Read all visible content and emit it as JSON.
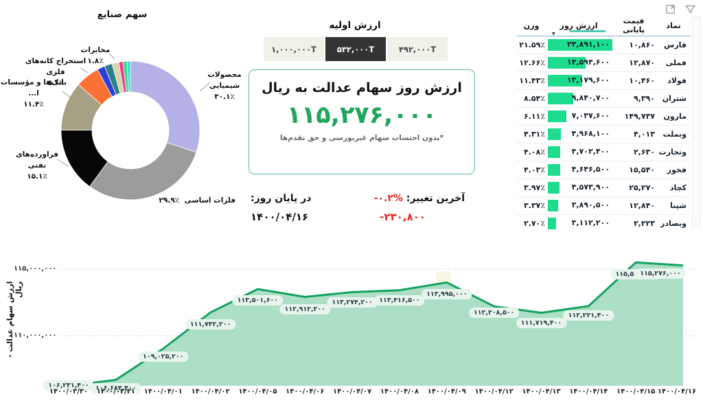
{
  "topbar": {
    "icons": [
      {
        "name": "filter-funnel"
      },
      {
        "name": "expand-fullscreen"
      }
    ]
  },
  "industry_chart": {
    "title": "سهم صنایع",
    "segments": [
      {
        "label": "محصولات شیمیایی",
        "pct_label": "۳۰.۱٪",
        "pct": 30.1,
        "color": "#b3b1e5"
      },
      {
        "label": "فلزات اساسی",
        "pct_label": "۲۹.۹٪",
        "pct": 29.9,
        "color": "#9c9c9c"
      },
      {
        "label": "فراورده‌های نفتی",
        "pct_label": "۱۵.۱٪",
        "pct": 15.1,
        "color": "#060606"
      },
      {
        "label": "بانک‌ها و مؤسسات ا...",
        "pct_label": "۱۱.۴٪",
        "pct": 11.4,
        "color": "#a6a184"
      },
      {
        "label": "استخراج کانه‌های فلزی",
        "pct_label": "۵.۶٪",
        "pct": 5.6,
        "color": "#fb7134"
      },
      {
        "label": "مخابرات",
        "pct_label": "۱.۸٪",
        "pct": 1.8,
        "color": "#2c3fd4"
      },
      {
        "label": "",
        "pct_label": "",
        "pct": 1.8,
        "color": "#2e7f8d"
      },
      {
        "label": "",
        "pct_label": "",
        "pct": 1.6,
        "color": "#d9d4a9"
      },
      {
        "label": "",
        "pct_label": "",
        "pct": 1.0,
        "color": "#f23a93"
      },
      {
        "label": "",
        "pct_label": "",
        "pct": 0.9,
        "color": "#35d98b"
      },
      {
        "label": "",
        "pct_label": "",
        "pct": 0.8,
        "color": "#3fdcd0"
      }
    ]
  },
  "initial_value": {
    "title": "ارزش اولیه",
    "options": [
      {
        "label": "۱,۰۰۰,۰۰۰T",
        "selected": false
      },
      {
        "label": "۵۳۲,۰۰۰T",
        "selected": true
      },
      {
        "label": "۴۹۲,۰۰۰T",
        "selected": false
      }
    ]
  },
  "value_box": {
    "title": "ارزش روز سهام عدالت به ریال",
    "value": "۱۱۵,۲۷۶,۰۰۰",
    "note": "*بدون احتساب سهام غیربورسی و حق تقدم‌ها"
  },
  "change": {
    "label": "آخرین تغییر:",
    "pct": "-۰.۲%",
    "end_label": "در پایان روز:",
    "amount": "-۲۳۰,۸۰۰",
    "date": "۱۴۰۰/۰۴/۱۶"
  },
  "table": {
    "columns": [
      "نماد",
      "قیمت پایانی",
      "ارزش روز",
      "وزن"
    ],
    "sort_icon": "▼",
    "scrollbar": {
      "up": "˄",
      "down": "˅"
    },
    "rows": [
      {
        "symbol": "فارس",
        "close": "۱۰,۸۶۰",
        "value": "۲۴,۸۹۱,۱۰۰",
        "weight": "۲۱.۵۹٪"
      },
      {
        "symbol": "فملی",
        "close": "۱۲,۸۷۰",
        "value": "۱۴,۵۹۴,۶۰۰",
        "weight": "۱۲.۶۶٪"
      },
      {
        "symbol": "فولاد",
        "close": "۱۰,۴۶۰",
        "value": "۱۳,۱۷۹,۶۰۰",
        "weight": "۱۱.۴۳٪"
      },
      {
        "symbol": "شتران",
        "close": "۹,۳۹۰",
        "value": "۹,۸۴۰,۷۰۰",
        "weight": "۸.۵۴٪"
      },
      {
        "symbol": "مارون",
        "close": "۱۴۹,۷۳۷",
        "value": "۷,۰۳۷,۶۰۰",
        "weight": "۶.۱۱٪"
      },
      {
        "symbol": "وبملت",
        "close": "۴,۰۱۳",
        "value": "۴,۹۶۸,۱۰۰",
        "weight": "۴.۳۱٪"
      },
      {
        "symbol": "وتجارت",
        "close": "۲,۶۳۰",
        "value": "۴,۷۰۲,۴۰۰",
        "weight": "۴.۰۸٪"
      },
      {
        "symbol": "فخوز",
        "close": "۱۵,۵۴۰",
        "value": "۴,۶۴۶,۵۰۰",
        "weight": "۴.۰۳٪"
      },
      {
        "symbol": "کچاد",
        "close": "۲۵,۲۷۰",
        "value": "۴,۵۷۳,۹۰۰",
        "weight": "۳.۹۷٪"
      },
      {
        "symbol": "شپنا",
        "close": "۱۲,۸۴۰",
        "value": "۳,۸۹۰,۵۰۰",
        "weight": "۳.۳۷٪"
      },
      {
        "symbol": "وبصادر",
        "close": "۲,۲۲۳",
        "value": "۳,۱۱۲,۲۰۰",
        "weight": "۲.۷۰٪"
      },
      {
        "symbol": "",
        "close": "",
        "value": "",
        "weight": "",
        "partial": true
      }
    ]
  },
  "chart_data": {
    "type": "area",
    "title": "",
    "xlabel": "",
    "ylabel": "ارزش سهام عدالت - ریال",
    "x": [
      "۱۴۰۰/۰۳/۳۰",
      "۱۴۰۰/۰۳/۳۱",
      "۱۴۰۰/۰۴/۰۱",
      "۱۴۰۰/۰۴/۰۲",
      "۱۴۰۰/۰۴/۰۵",
      "۱۴۰۰/۰۴/۰۶",
      "۱۴۰۰/۰۴/۰۷",
      "۱۴۰۰/۰۴/۰۸",
      "۱۴۰۰/۰۴/۰۹",
      "۱۴۰۰/۰۴/۱۲",
      "۱۴۰۰/۰۴/۱۳",
      "۱۴۰۰/۰۴/۱۴",
      "۱۴۰۰/۰۴/۱۵",
      "۱۴۰۰/۰۴/۱۶"
    ],
    "values": [
      106231400,
      106684400,
      109025200,
      111742200,
      113501600,
      112912200,
      113274200,
      113416500,
      113995000,
      112208500,
      111719400,
      112221400,
      115506800,
      115276000
    ],
    "point_labels": [
      "۱۰۶,۲۳۱,۴۰۰",
      "۱۰۶,۶۸۴,۴۰۰",
      "۱۰۹,۰۲۵,۲۰۰",
      "۱۱۱,۷۴۲,۲۰۰",
      "۱۱۳,۵۰۱,۶۰۰",
      "۱۱۲,۹۱۲,۲۰۰",
      "۱۱۳,۲۷۴,۲۰۰",
      "۱۱۳,۴۱۶,۵۰۰",
      "۱۱۳,۹۹۵,۰۰۰",
      "۱۱۲,۲۰۸,۵۰۰",
      "۱۱۱,۷۱۹,۴۰۰",
      "۱۱۲,۲۲۱,۴۰۰",
      "۱۱۵,۵۰۶,۸۰۰",
      "۱۱۵,۲۷۶,۰۰۰"
    ],
    "yticks": [
      {
        "value": 115000000,
        "label": "۱۱۵,۰۰۰,۰۰۰"
      },
      {
        "value": 110000000,
        "label": "۱۱۰,۰۰۰,۰۰۰"
      }
    ],
    "ylim": [
      105800000,
      116300000
    ],
    "grid": "dotted-horizontal",
    "legend": "none",
    "line_color": "#12a35e",
    "fill_color": "#a9dcc3"
  }
}
